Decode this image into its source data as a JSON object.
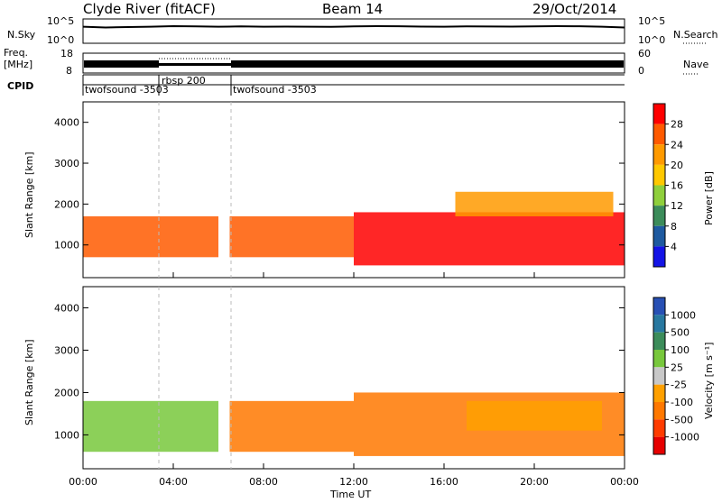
{
  "header": {
    "station": "Clyde River (fitACF)",
    "beam": "Beam 14",
    "date": "29/Oct/2014"
  },
  "noise_panel": {
    "left_label": "N.Sky",
    "right_label": "N.Search",
    "tick_top": "10^5",
    "tick_bottom": "10^0"
  },
  "freq_panel": {
    "label_line1": "Freq.",
    "label_line2": "[MHz]",
    "ticks_left": [
      "18",
      "8"
    ],
    "ticks_right": [
      "60",
      "0"
    ],
    "right_label": "Nave"
  },
  "cpid_panel": {
    "label": "CPID",
    "segments": [
      {
        "name": "twofsound -3503",
        "start": 0.0,
        "end": 3.33
      },
      {
        "name": "rbsp 200",
        "start": 3.33,
        "end": 6.5
      },
      {
        "name": "twofsound -3503",
        "start": 6.5,
        "end": 24.0
      }
    ]
  },
  "power_colorbar": {
    "label": "Power [dB]",
    "ticks": [
      "28",
      "24",
      "20",
      "16",
      "12",
      "8",
      "4"
    ],
    "colors": [
      "#ff0000",
      "#ff5a00",
      "#ff9a00",
      "#ffc800",
      "#8fcf3c",
      "#3c8c5a",
      "#1e5aa0",
      "#1414e6"
    ]
  },
  "velocity_colorbar": {
    "label": "Velocity [m s⁻¹]",
    "ticks": [
      "1000",
      "500",
      "100",
      "25",
      "-25",
      "-100",
      "-500",
      "-1000"
    ],
    "colors": [
      "#2850b4",
      "#2878a0",
      "#3c8c5a",
      "#78c83c",
      "#c8c8c8",
      "#ffa000",
      "#ff7800",
      "#ff3c00",
      "#e60000"
    ]
  },
  "x_axis": {
    "label": "Time UT",
    "ticks": [
      "00:00",
      "04:00",
      "08:00",
      "12:00",
      "16:00",
      "20:00",
      "00:00"
    ]
  },
  "y_axis": {
    "label": "Slant Range [km]",
    "ticks": [
      "4000",
      "3000",
      "2000",
      "1000"
    ]
  },
  "chart_data": [
    {
      "type": "line",
      "name": "noise",
      "y_scale": "log",
      "x": [
        0,
        1,
        2,
        3,
        4,
        5,
        6,
        7,
        8,
        9,
        10,
        11,
        12,
        13,
        14,
        15,
        16,
        17,
        18,
        19,
        20,
        21,
        22,
        23,
        24
      ],
      "y": [
        3000,
        2000,
        2500,
        3000,
        4000,
        3500,
        3000,
        3500,
        3000,
        3200,
        3000,
        2800,
        3500,
        4000,
        3800,
        3200,
        3000,
        3500,
        3300,
        3200,
        3500,
        4000,
        3800,
        3000,
        2000
      ]
    },
    {
      "type": "heatmap",
      "name": "power",
      "x_range": [
        0,
        24
      ],
      "y_range": [
        200,
        4500
      ],
      "z_unit": "dB",
      "bands": [
        {
          "t_start": 0.0,
          "t_end": 6.0,
          "range_low": 700,
          "range_high": 1700,
          "z": 24
        },
        {
          "t_start": 6.5,
          "t_end": 12.0,
          "range_low": 700,
          "range_high": 1700,
          "z": 22
        },
        {
          "t_start": 12.0,
          "t_end": 24.0,
          "range_low": 500,
          "range_high": 1800,
          "z": 26
        },
        {
          "t_start": 16.5,
          "t_end": 23.5,
          "range_low": 1700,
          "range_high": 2300,
          "z": 20
        }
      ]
    },
    {
      "type": "heatmap",
      "name": "velocity",
      "x_range": [
        0,
        24
      ],
      "y_range": [
        200,
        4500
      ],
      "z_unit": "m/s",
      "bands": [
        {
          "t_start": 0.0,
          "t_end": 6.0,
          "range_low": 600,
          "range_high": 1800,
          "z": 80
        },
        {
          "t_start": 6.5,
          "t_end": 12.0,
          "range_low": 600,
          "range_high": 1800,
          "z": -200
        },
        {
          "t_start": 12.0,
          "t_end": 24.0,
          "range_low": 500,
          "range_high": 2000,
          "z": -250
        },
        {
          "t_start": 17.0,
          "t_end": 23.0,
          "range_low": 1100,
          "range_high": 1800,
          "z": -30
        }
      ]
    }
  ]
}
